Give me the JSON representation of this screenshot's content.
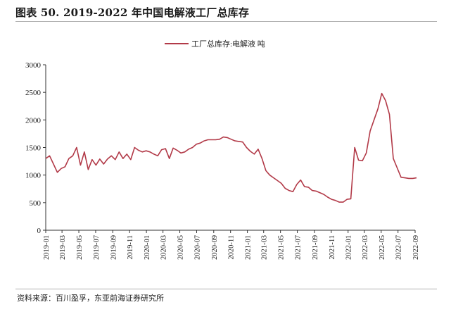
{
  "figure": {
    "title": "图表 50. 2019-2022 年中国电解液工厂总库存",
    "source": "资料来源：百川盈孚，东亚前海证券研究所"
  },
  "colors": {
    "series": "#b23a48",
    "axis": "#333333"
  },
  "chart_data": {
    "type": "line",
    "ylim": [
      0,
      3000
    ],
    "yticks": [
      "0",
      "500",
      "1000",
      "1500",
      "2000",
      "2500",
      "3000"
    ],
    "xticks": [
      "2019-01",
      "2019-03",
      "2019-05",
      "2019-07",
      "2019-09",
      "2019-11",
      "2020-01",
      "2020-03",
      "2020-05",
      "2020-07",
      "2020-09",
      "2020-11",
      "2021-01",
      "2021-03",
      "2021-05",
      "2021-07",
      "2021-09",
      "2021-11",
      "2022-01",
      "2022-03",
      "2022-05",
      "2022-07",
      "2022-09"
    ],
    "legend": {
      "position": "top-center",
      "entries": [
        "工厂总库存:电解液 吨"
      ]
    },
    "series": [
      {
        "name": "工厂总库存:电解液 吨",
        "x": [
          "2019-01-01",
          "2019-01-15",
          "2019-01-29",
          "2019-02-12",
          "2019-02-26",
          "2019-03-12",
          "2019-03-26",
          "2019-04-09",
          "2019-04-23",
          "2019-05-07",
          "2019-05-21",
          "2019-06-04",
          "2019-06-18",
          "2019-07-02",
          "2019-07-16",
          "2019-07-30",
          "2019-08-13",
          "2019-08-27",
          "2019-09-10",
          "2019-09-24",
          "2019-10-08",
          "2019-10-22",
          "2019-11-05",
          "2019-11-19",
          "2019-12-03",
          "2019-12-17",
          "2019-12-31",
          "2020-01-14",
          "2020-01-28",
          "2020-02-11",
          "2020-02-25",
          "2020-03-10",
          "2020-03-24",
          "2020-04-07",
          "2020-04-21",
          "2020-05-05",
          "2020-05-19",
          "2020-06-02",
          "2020-06-16",
          "2020-06-30",
          "2020-07-14",
          "2020-07-28",
          "2020-08-11",
          "2020-08-25",
          "2020-09-08",
          "2020-09-22",
          "2020-10-06",
          "2020-10-20",
          "2020-11-03",
          "2020-11-17",
          "2020-12-01",
          "2020-12-15",
          "2020-12-29",
          "2021-01-12",
          "2021-01-26",
          "2021-02-09",
          "2021-02-23",
          "2021-03-09",
          "2021-03-23",
          "2021-04-06",
          "2021-04-20",
          "2021-05-04",
          "2021-05-18",
          "2021-06-01",
          "2021-06-15",
          "2021-06-29",
          "2021-07-13",
          "2021-07-27",
          "2021-08-10",
          "2021-08-24",
          "2021-09-07",
          "2021-09-21",
          "2021-10-05",
          "2021-10-19",
          "2021-11-02",
          "2021-11-16",
          "2021-11-30",
          "2021-12-14",
          "2021-12-28",
          "2022-01-11",
          "2022-01-25",
          "2022-02-08",
          "2022-02-22",
          "2022-03-08",
          "2022-03-22",
          "2022-04-05",
          "2022-04-19",
          "2022-05-03",
          "2022-05-17",
          "2022-05-31",
          "2022-06-14",
          "2022-06-28",
          "2022-07-12",
          "2022-07-26",
          "2022-08-09",
          "2022-08-23",
          "2022-09-06"
        ],
        "values": [
          1300,
          1350,
          1200,
          1050,
          1120,
          1150,
          1300,
          1350,
          1500,
          1180,
          1420,
          1100,
          1280,
          1180,
          1290,
          1200,
          1290,
          1350,
          1280,
          1420,
          1300,
          1380,
          1280,
          1500,
          1450,
          1420,
          1440,
          1420,
          1380,
          1350,
          1460,
          1480,
          1300,
          1490,
          1450,
          1400,
          1420,
          1470,
          1500,
          1560,
          1580,
          1620,
          1640,
          1640,
          1640,
          1650,
          1690,
          1680,
          1650,
          1620,
          1610,
          1600,
          1500,
          1430,
          1380,
          1470,
          1300,
          1080,
          1000,
          950,
          900,
          850,
          760,
          720,
          700,
          830,
          910,
          790,
          780,
          720,
          710,
          680,
          650,
          600,
          560,
          540,
          510,
          510,
          560,
          570,
          1500,
          1270,
          1260,
          1400,
          1800,
          2000,
          2200,
          2480,
          2350,
          2100,
          1300,
          1130,
          960,
          950,
          940,
          940,
          950
        ]
      }
    ]
  }
}
